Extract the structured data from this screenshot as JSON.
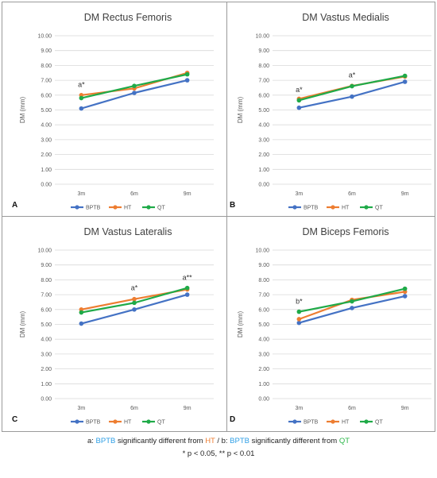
{
  "colors": {
    "BPTB": "#4472C4",
    "HT": "#ED7D31",
    "QT": "#1FAA48",
    "grid": "#d9d9d9",
    "axis_text": "#595959",
    "footnote_bptb": "#2E9FE6",
    "footnote_ht": "#ED7D31",
    "footnote_qt": "#2EB84B"
  },
  "chart_data": [
    {
      "type": "line",
      "panel_label": "A",
      "title": "DM Rectus Femoris",
      "ylabel": "DM (mm)",
      "xlabel": "",
      "categories": [
        "3m",
        "6m",
        "9m"
      ],
      "ylim": [
        0,
        10
      ],
      "ytick_labels": [
        "0.00",
        "1.00",
        "2.00",
        "3.00",
        "4.00",
        "5.00",
        "6.00",
        "7.00",
        "8.00",
        "9.00",
        "10.00"
      ],
      "grid": true,
      "legend": "bottom",
      "series": [
        {
          "name": "BPTB",
          "values": [
            5.1,
            6.15,
            7.0
          ]
        },
        {
          "name": "HT",
          "values": [
            6.0,
            6.45,
            7.5
          ]
        },
        {
          "name": "QT",
          "values": [
            5.8,
            6.62,
            7.4
          ]
        }
      ],
      "annotations": [
        {
          "text": "a*",
          "x": "3m",
          "y": 6.55
        }
      ]
    },
    {
      "type": "line",
      "panel_label": "B",
      "title": "DM Vastus Medialis",
      "ylabel": "DM (mm)",
      "xlabel": "",
      "categories": [
        "3m",
        "6m",
        "9m"
      ],
      "ylim": [
        0,
        10
      ],
      "ytick_labels": [
        "0.00",
        "1.00",
        "2.00",
        "3.00",
        "4.00",
        "5.00",
        "6.00",
        "7.00",
        "8.00",
        "9.00",
        "10.00"
      ],
      "grid": true,
      "legend": "bottom",
      "series": [
        {
          "name": "BPTB",
          "values": [
            5.15,
            5.9,
            6.9
          ]
        },
        {
          "name": "HT",
          "values": [
            5.75,
            6.62,
            7.25
          ]
        },
        {
          "name": "QT",
          "values": [
            5.65,
            6.6,
            7.3
          ]
        }
      ],
      "annotations": [
        {
          "text": "a*",
          "x": "3m",
          "y": 6.2
        },
        {
          "text": "a*",
          "x": "6m",
          "y": 7.2
        }
      ]
    },
    {
      "type": "line",
      "panel_label": "C",
      "title": "DM Vastus Lateralis",
      "ylabel": "DM (mm)",
      "xlabel": "",
      "categories": [
        "3m",
        "6m",
        "9m"
      ],
      "ylim": [
        0,
        10
      ],
      "ytick_labels": [
        "0.00",
        "1.00",
        "2.00",
        "3.00",
        "4.00",
        "5.00",
        "6.00",
        "7.00",
        "8.00",
        "9.00",
        "10.00"
      ],
      "grid": true,
      "legend": "bottom",
      "series": [
        {
          "name": "BPTB",
          "values": [
            5.05,
            6.0,
            7.0
          ]
        },
        {
          "name": "HT",
          "values": [
            6.0,
            6.7,
            7.35
          ]
        },
        {
          "name": "QT",
          "values": [
            5.8,
            6.45,
            7.45
          ]
        }
      ],
      "annotations": [
        {
          "text": "a*",
          "x": "6m",
          "y": 7.3
        },
        {
          "text": "a**",
          "x": "9m",
          "y": 8.0
        }
      ]
    },
    {
      "type": "line",
      "panel_label": "D",
      "title": "DM Biceps Femoris",
      "ylabel": "DM (mm)",
      "xlabel": "",
      "categories": [
        "3m",
        "6m",
        "9m"
      ],
      "ylim": [
        0,
        10
      ],
      "ytick_labels": [
        "0.00",
        "1.00",
        "2.00",
        "3.00",
        "4.00",
        "5.00",
        "6.00",
        "7.00",
        "8.00",
        "9.00",
        "10.00"
      ],
      "grid": true,
      "legend": "bottom",
      "series": [
        {
          "name": "BPTB",
          "values": [
            5.1,
            6.1,
            6.9
          ]
        },
        {
          "name": "HT",
          "values": [
            5.35,
            6.65,
            7.2
          ]
        },
        {
          "name": "QT",
          "values": [
            5.85,
            6.55,
            7.4
          ]
        }
      ],
      "annotations": [
        {
          "text": "b*",
          "x": "3m",
          "y": 6.4
        }
      ]
    }
  ],
  "footnote": {
    "line1": {
      "a_prefix": "a: ",
      "bptb1": "BPTB",
      "mid1": " significantly different from ",
      "ht": "HT",
      "sep": " / b: ",
      "bptb2": "BPTB",
      "mid2": " significantly different from ",
      "qt": "QT"
    },
    "line2": "* p < 0.05, ** p < 0.01"
  }
}
